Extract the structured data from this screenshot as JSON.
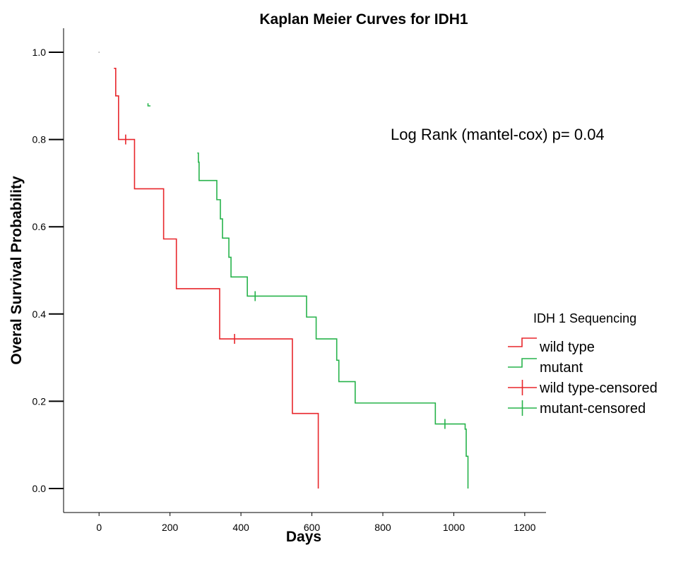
{
  "chart_data": {
    "type": "line",
    "title": "Kaplan Meier Curves for IDH1",
    "xlabel": "Days",
    "ylabel": "Overal Survival Probability",
    "xlim": [
      -100,
      1260
    ],
    "ylim": [
      -0.055,
      1.055
    ],
    "x_ticks": [
      0,
      200,
      400,
      600,
      800,
      1000,
      1200
    ],
    "x_tick_labels": [
      "0",
      "200",
      "400",
      "600",
      "800",
      "1000",
      "1200"
    ],
    "y_ticks": [
      0.0,
      0.2,
      0.4,
      0.6,
      0.8,
      1.0
    ],
    "y_tick_labels": [
      "0.0",
      "0.2",
      "0.4",
      "0.6",
      "0.8",
      "1.0"
    ],
    "annotation": "Log Rank (mantel-cox) p= 0.04",
    "legend": {
      "title": "IDH 1 Sequencing",
      "position": "right",
      "entries": [
        "wild type",
        "mutant",
        "wild type-censored",
        "mutant-censored"
      ]
    },
    "series": [
      {
        "name": "wild type",
        "color": "#e8262b",
        "steps": [
          [
            42,
            0.963
          ],
          [
            47,
            0.9
          ],
          [
            55,
            0.8
          ],
          [
            100,
            0.687
          ],
          [
            182,
            0.572
          ],
          [
            218,
            0.458
          ],
          [
            340,
            0.343
          ],
          [
            545,
            0.172
          ],
          [
            618,
            0.0
          ]
        ],
        "end_x": 618,
        "censored": [
          [
            75,
            0.8
          ],
          [
            382,
            0.343
          ]
        ]
      },
      {
        "name": "mutant",
        "color": "#27b34b",
        "steps": [
          [
            277,
            0.769
          ],
          [
            280,
            0.748
          ],
          [
            282,
            0.706
          ],
          [
            332,
            0.662
          ],
          [
            342,
            0.618
          ],
          [
            348,
            0.574
          ],
          [
            366,
            0.53
          ],
          [
            372,
            0.485
          ],
          [
            418,
            0.441
          ],
          [
            585,
            0.393
          ],
          [
            612,
            0.343
          ],
          [
            670,
            0.294
          ],
          [
            676,
            0.245
          ],
          [
            722,
            0.196
          ],
          [
            948,
            0.148
          ],
          [
            1032,
            0.136
          ],
          [
            1035,
            0.074
          ],
          [
            1040,
            0.0
          ]
        ],
        "end_x": 1040,
        "censored": [
          [
            440,
            0.441
          ],
          [
            975,
            0.148
          ]
        ],
        "fragments": [
          [
            [
              138,
              0.883
            ],
            [
              138,
              0.877
            ],
            [
              145,
              0.877
            ]
          ]
        ]
      }
    ],
    "censor_series": [
      {
        "name": "wild type-censored",
        "color": "#e8262b"
      },
      {
        "name": "mutant-censored",
        "color": "#27b34b"
      }
    ]
  }
}
